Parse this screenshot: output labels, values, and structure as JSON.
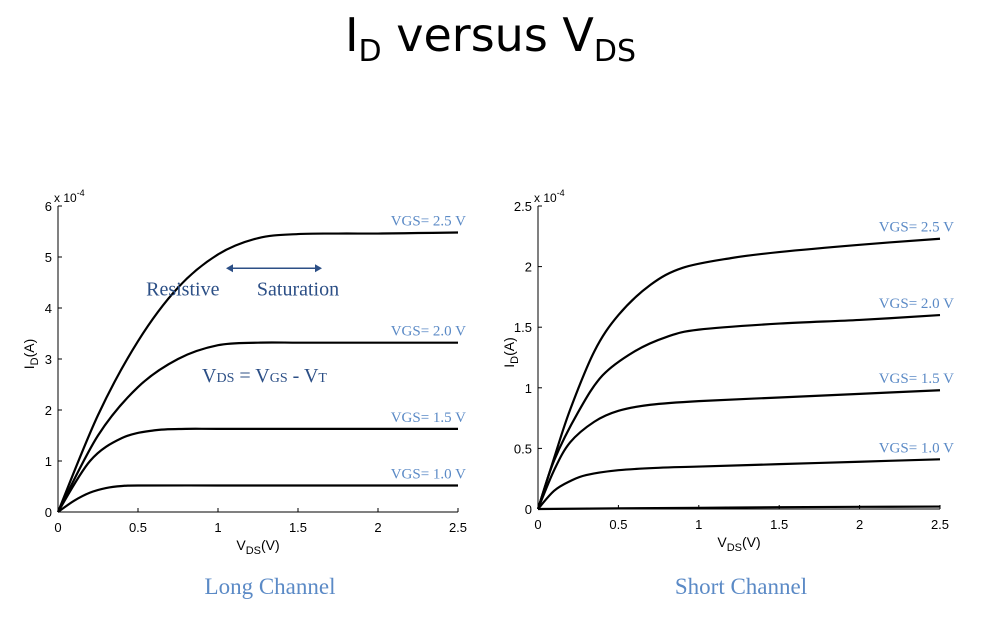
{
  "title": {
    "main": "I",
    "main_sub": "D",
    "mid": " versus V",
    "end_sub": "DS"
  },
  "colors": {
    "curve": "#000000",
    "label": "#5b8ac6",
    "text_blue": "#2c4f86",
    "axis": "#000000"
  },
  "chart_data": [
    {
      "type": "line",
      "caption": "Long Channel",
      "xlabel_main": "V",
      "xlabel_sub": "DS",
      "xlabel_tail": "(V)",
      "ylabel_main": "I",
      "ylabel_sub": "D",
      "ylabel_tail": "(A)",
      "xlim": [
        0,
        2.5
      ],
      "ylim": [
        0,
        6
      ],
      "xticks": [
        0,
        0.5,
        1,
        1.5,
        2,
        2.5
      ],
      "xtick_labels": [
        "0",
        "0.5",
        "1",
        "1.5",
        "2",
        "2.5"
      ],
      "yticks": [
        0,
        1,
        2,
        3,
        4,
        5,
        6
      ],
      "ytick_labels": [
        "0",
        "1",
        "2",
        "3",
        "4",
        "5",
        "6"
      ],
      "y_multiplier": "x 10",
      "y_exponent": "-4",
      "grid": false,
      "series": [
        {
          "name": "VGS= 2.5 V",
          "x": [
            0,
            0.25,
            0.5,
            0.75,
            1.0,
            1.25,
            1.5,
            1.75,
            2.0,
            2.25,
            2.5
          ],
          "y": [
            0,
            1.9,
            3.35,
            4.4,
            5.05,
            5.37,
            5.45,
            5.46,
            5.46,
            5.47,
            5.48
          ]
        },
        {
          "name": "VGS= 2.0 V",
          "x": [
            0,
            0.25,
            0.5,
            0.75,
            1.0,
            1.25,
            1.5,
            1.75,
            2.0,
            2.25,
            2.5
          ],
          "y": [
            0,
            1.5,
            2.45,
            3.0,
            3.27,
            3.32,
            3.32,
            3.32,
            3.32,
            3.32,
            3.32
          ]
        },
        {
          "name": "VGS= 1.5 V",
          "x": [
            0,
            0.2,
            0.4,
            0.6,
            0.8,
            1.0,
            1.5,
            2.0,
            2.5
          ],
          "y": [
            0,
            1.0,
            1.45,
            1.6,
            1.63,
            1.63,
            1.63,
            1.63,
            1.63
          ]
        },
        {
          "name": "VGS= 1.0 V",
          "x": [
            0,
            0.1,
            0.2,
            0.3,
            0.4,
            0.5,
            1.0,
            1.5,
            2.0,
            2.5
          ],
          "y": [
            0,
            0.22,
            0.38,
            0.47,
            0.51,
            0.52,
            0.52,
            0.52,
            0.52,
            0.52
          ]
        }
      ],
      "annotations": [
        {
          "text": "Resistive",
          "x": 0.78,
          "y": 4.25
        },
        {
          "text": "Saturation",
          "x": 1.5,
          "y": 4.25
        },
        {
          "text_main": "V",
          "text_sub": "DS",
          "text_mid": " = V",
          "text_sub2": "GS",
          "text_end": " - V",
          "text_sub3": "T",
          "x": 0.9,
          "y": 2.55
        }
      ],
      "arrow": {
        "x_from": 1.05,
        "x_to": 1.65,
        "y": 4.78
      }
    },
    {
      "type": "line",
      "caption": "Short Channel",
      "xlabel_main": "V",
      "xlabel_sub": "DS",
      "xlabel_tail": "(V)",
      "ylabel_main": "I",
      "ylabel_sub": "D",
      "ylabel_tail": "(A)",
      "xlim": [
        0,
        2.5
      ],
      "ylim": [
        0,
        2.5
      ],
      "xticks": [
        0,
        0.5,
        1,
        1.5,
        2,
        2.5
      ],
      "xtick_labels": [
        "0",
        "0.5",
        "1",
        "1.5",
        "2",
        "2.5"
      ],
      "yticks": [
        0,
        0.5,
        1,
        1.5,
        2,
        2.5
      ],
      "ytick_labels": [
        "0",
        "0.5",
        "1",
        "1.5",
        "2",
        "2.5"
      ],
      "y_multiplier": "x 10",
      "y_exponent": "-4",
      "grid": false,
      "series": [
        {
          "name": "VGS= 2.5 V",
          "x": [
            0,
            0.1,
            0.2,
            0.35,
            0.5,
            0.7,
            0.9,
            1.2,
            1.5,
            2.0,
            2.5
          ],
          "y": [
            0,
            0.42,
            0.82,
            1.3,
            1.6,
            1.85,
            1.99,
            2.07,
            2.12,
            2.18,
            2.23
          ]
        },
        {
          "name": "VGS= 2.0 V",
          "x": [
            0,
            0.1,
            0.25,
            0.4,
            0.6,
            0.8,
            1.0,
            1.5,
            2.0,
            2.5
          ],
          "y": [
            0,
            0.4,
            0.8,
            1.1,
            1.3,
            1.42,
            1.48,
            1.53,
            1.56,
            1.6
          ]
        },
        {
          "name": "VGS= 1.5 V",
          "x": [
            0,
            0.1,
            0.2,
            0.35,
            0.5,
            0.7,
            1.0,
            1.5,
            2.0,
            2.5
          ],
          "y": [
            0,
            0.32,
            0.55,
            0.72,
            0.81,
            0.86,
            0.89,
            0.92,
            0.95,
            0.98
          ]
        },
        {
          "name": "VGS= 1.0 V",
          "x": [
            0,
            0.1,
            0.2,
            0.3,
            0.5,
            0.75,
            1.0,
            1.5,
            2.0,
            2.5
          ],
          "y": [
            0,
            0.15,
            0.23,
            0.28,
            0.32,
            0.34,
            0.35,
            0.37,
            0.39,
            0.41
          ]
        },
        {
          "name": "",
          "x": [
            0,
            0.5,
            1.0,
            1.5,
            2.0,
            2.5
          ],
          "y": [
            0,
            0.005,
            0.01,
            0.015,
            0.018,
            0.02
          ]
        }
      ]
    }
  ]
}
